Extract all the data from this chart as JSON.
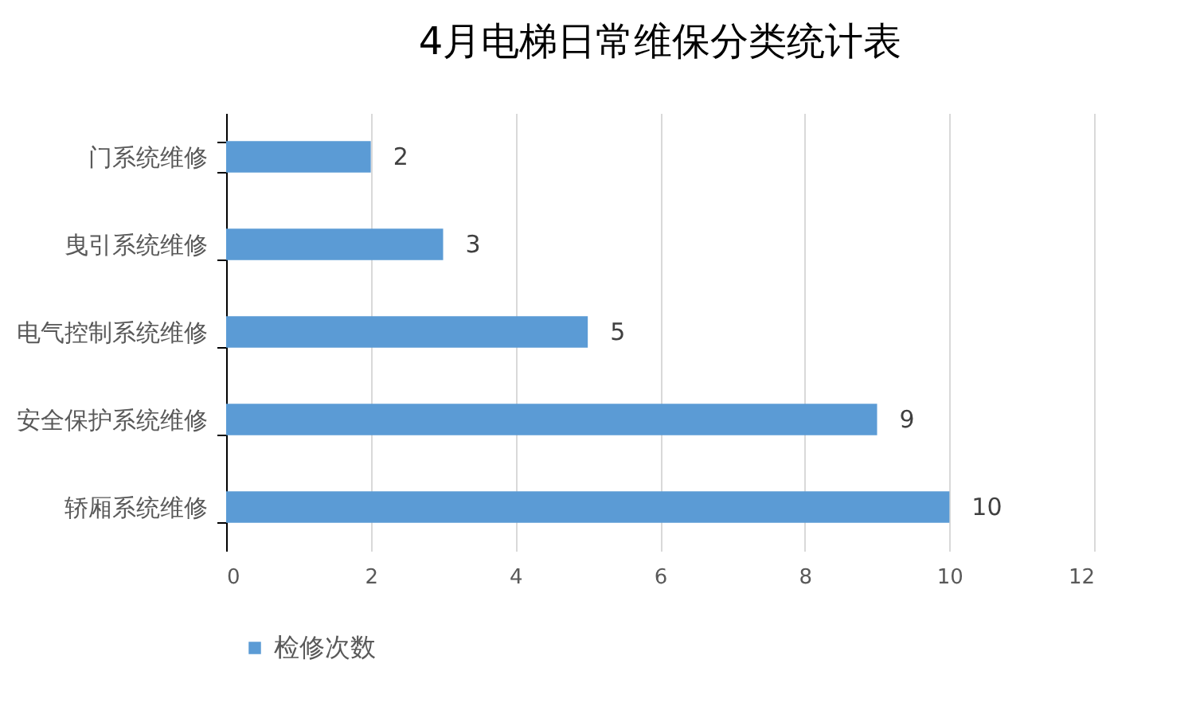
{
  "chart_data": {
    "type": "bar",
    "orientation": "horizontal",
    "title": "4月电梯日常维保分类统计表",
    "categories": [
      "门系统维修",
      "曳引系统维修",
      "电气控制系统维修",
      "安全保护系统维修",
      "轿厢系统维修"
    ],
    "series": [
      {
        "name": "检修次数",
        "color": "#5b9bd5",
        "values": [
          2,
          3,
          5,
          9,
          10
        ]
      }
    ],
    "xlim": [
      0,
      12
    ],
    "xticks": [
      0,
      2,
      4,
      6,
      8,
      10,
      12
    ],
    "grid": "x",
    "legend": "bottom",
    "data_labels": true
  }
}
